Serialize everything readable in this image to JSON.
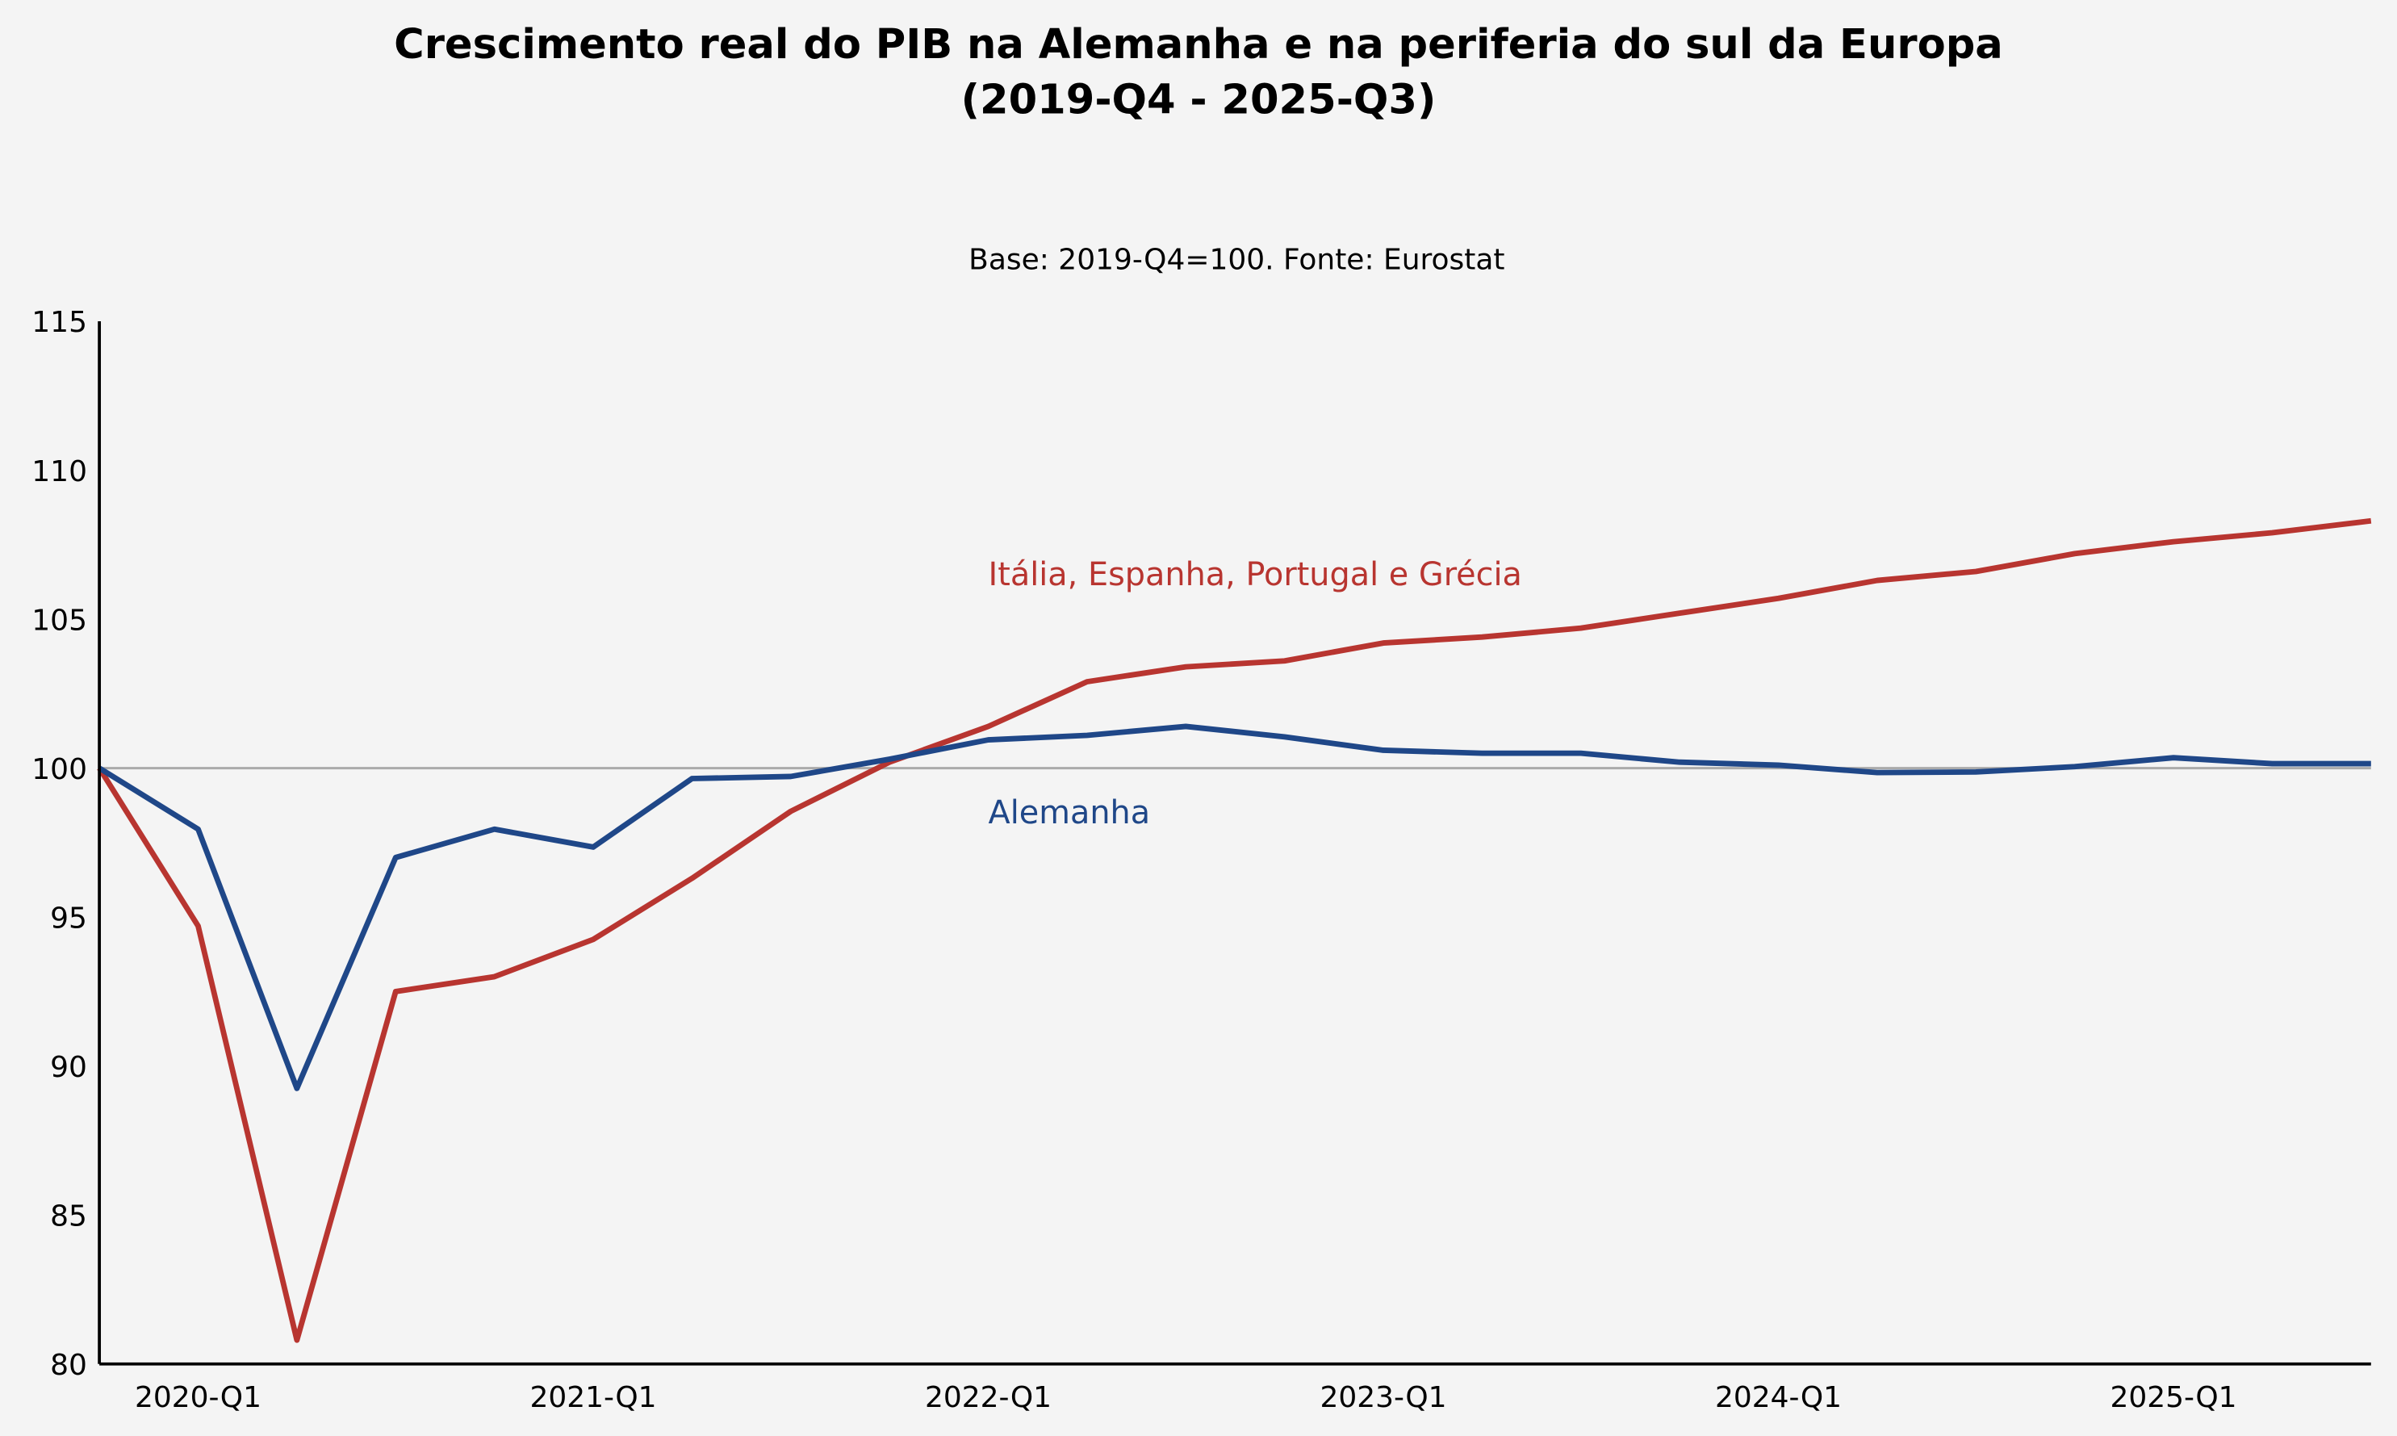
{
  "chart_data": {
    "type": "line",
    "title": "Crescimento real do PIB na Alemanha e na periferia do sul da Europa",
    "title_line2": "(2019-Q4 - 2025-Q3)",
    "subtitle": "Base: 2019-Q4=100. Fonte: Eurostat",
    "xlabel": "",
    "ylabel": "",
    "ylim": [
      80,
      115
    ],
    "yticks": [
      "80",
      "85",
      "90",
      "95",
      "100",
      "105",
      "110",
      "115"
    ],
    "x": [
      "2019-Q4",
      "2020-Q1",
      "2020-Q2",
      "2020-Q3",
      "2020-Q4",
      "2021-Q1",
      "2021-Q2",
      "2021-Q3",
      "2021-Q4",
      "2022-Q1",
      "2022-Q2",
      "2022-Q3",
      "2022-Q4",
      "2023-Q1",
      "2023-Q2",
      "2023-Q3",
      "2023-Q4",
      "2024-Q1",
      "2024-Q2",
      "2024-Q3",
      "2024-Q4",
      "2025-Q1",
      "2025-Q2",
      "2025-Q3"
    ],
    "xtick_labels": [
      "2020-Q1",
      "2021-Q1",
      "2022-Q1",
      "2023-Q1",
      "2024-Q1",
      "2025-Q1"
    ],
    "reference_line": 100,
    "grid": false,
    "series": [
      {
        "name": "Itália, Espanha, Portugal e Grécia",
        "color": "#b83530",
        "label_at": "2022-Q1",
        "label_y": 106.5,
        "values": [
          100.0,
          94.7,
          80.8,
          92.5,
          93.0,
          94.25,
          96.3,
          98.55,
          100.2,
          101.4,
          102.9,
          103.4,
          103.6,
          104.2,
          104.4,
          104.7,
          105.2,
          105.7,
          106.3,
          106.6,
          107.2,
          107.6,
          107.9,
          108.3
        ]
      },
      {
        "name": "Alemanha",
        "color": "#1f4788",
        "label_at": "2022-Q1",
        "label_y": 98.5,
        "values": [
          100.0,
          97.95,
          89.25,
          97.0,
          97.95,
          97.35,
          99.65,
          99.72,
          100.3,
          100.95,
          101.1,
          101.4,
          101.05,
          100.6,
          100.5,
          100.5,
          100.2,
          100.1,
          99.85,
          99.87,
          100.05,
          100.35,
          100.15,
          100.15
        ]
      }
    ]
  }
}
